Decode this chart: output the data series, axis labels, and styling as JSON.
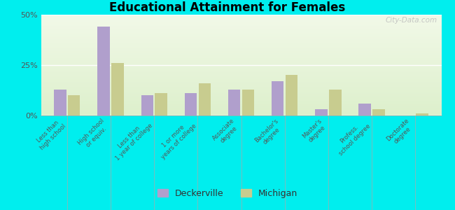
{
  "title": "Educational Attainment for Females",
  "categories": [
    "Less than\nhigh school",
    "High school\nor equiv.",
    "Less than\n1 year of college",
    "1 or more\nyears of college",
    "Associate\ndegree",
    "Bachelor's\ndegree",
    "Master's\ndegree",
    "Profess.\nschool degree",
    "Doctorate\ndegree"
  ],
  "deckerville": [
    13,
    44,
    10,
    11,
    13,
    17,
    3,
    6,
    0
  ],
  "michigan": [
    10,
    26,
    11,
    16,
    13,
    20,
    13,
    3,
    1
  ],
  "deckerville_color": "#b09fcc",
  "michigan_color": "#c8cc8f",
  "ylim": [
    0,
    50
  ],
  "yticks": [
    0,
    25,
    50
  ],
  "ytick_labels": [
    "0%",
    "25%",
    "50%"
  ],
  "outer_background": "#00eeee",
  "bar_width": 0.28,
  "watermark": "City-Data.com",
  "bg_gradient_top": "#f0f8e8",
  "bg_gradient_bottom": "#e0f0d0"
}
